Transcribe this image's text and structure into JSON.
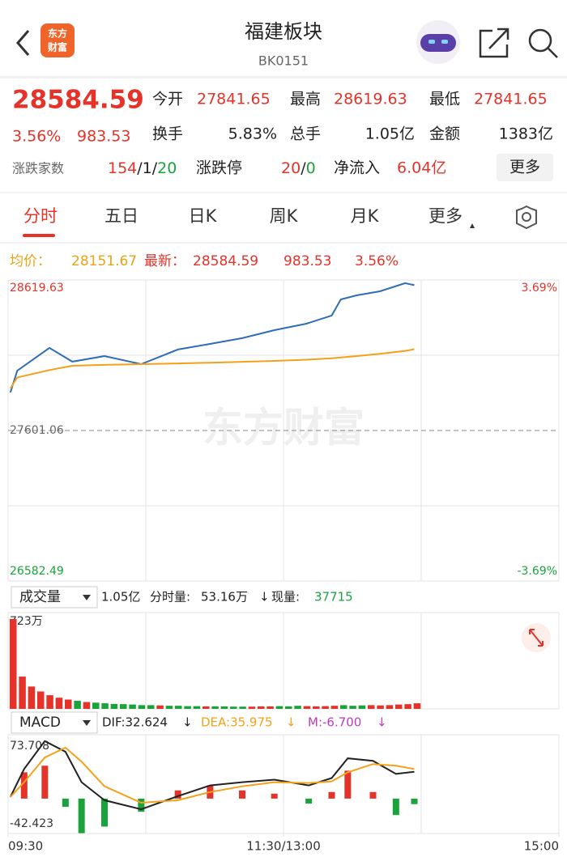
{
  "header": {
    "title": "福建板块",
    "code": "BK0151",
    "logo": [
      "东方",
      "财富"
    ]
  },
  "quote": {
    "price": "28584.59",
    "change_pct": "3.56%",
    "change": "983.53",
    "fields": [
      {
        "label": "今开",
        "value": "27841.65"
      },
      {
        "label": "最高",
        "value": "28619.63"
      },
      {
        "label": "最低",
        "value": "27841.65"
      },
      {
        "label": "换手",
        "value": "5.83%"
      },
      {
        "label": "总手",
        "value": "1.05亿"
      },
      {
        "label": "金额",
        "value": "1383亿"
      }
    ],
    "breadth": {
      "label": "涨跌家数",
      "up": "154",
      "s1": "/",
      "flat": "1",
      "s2": "/",
      "down": "20"
    },
    "limit": {
      "label": "涨跌停",
      "up": "20",
      "s": "/",
      "down": "0"
    },
    "netflow": {
      "label": "净流入",
      "value": "6.04亿"
    },
    "more": "更多"
  },
  "tabs": [
    "分时",
    "五日",
    "日K",
    "周K",
    "月K",
    "更多"
  ],
  "info": {
    "avg_label": "均价：",
    "avg": "28151.67",
    "last_label": "最新：",
    "last": "28584.59",
    "change": "983.53",
    "change_pct": "3.56%"
  },
  "time_axis": {
    "xlim": [
      0,
      240
    ],
    "xticks": [
      {
        "value": 0,
        "label": "09:30"
      },
      {
        "value": 120,
        "label": "11:30/13:00"
      },
      {
        "value": 240,
        "label": "15:00"
      }
    ]
  },
  "price_chart": {
    "type": "line",
    "watermark": "东方财富",
    "ylim": [
      26582.49,
      28619.63
    ],
    "yticks": [
      26582.49,
      27601.06,
      28619.63
    ],
    "y2lim": [
      -3.69,
      3.69
    ],
    "y2ticks": [
      {
        "value": 3.69,
        "label": "3.69%"
      },
      {
        "value": -3.69,
        "label": "-3.69%"
      }
    ],
    "x": [
      1,
      4,
      18,
      28,
      42,
      58,
      74,
      88,
      102,
      116,
      130,
      141,
      145,
      152,
      162,
      173,
      177
    ],
    "series": [
      {
        "color": "#2f6db5",
        "values": [
          27858,
          28006,
          28160,
          28067,
          28105,
          28050,
          28149,
          28187,
          28226,
          28280,
          28324,
          28379,
          28488,
          28516,
          28543,
          28598,
          28584.59
        ]
      },
      {
        "color": "#f5a01a",
        "values": [
          27886,
          27960,
          28010,
          28039,
          28045,
          28050,
          28055,
          28060,
          28066,
          28072,
          28080,
          28090,
          28095,
          28105,
          28120,
          28140,
          28151.67
        ]
      }
    ]
  },
  "volume_bar": {
    "selector": "成交量",
    "total": "1.05亿",
    "minute_label": "分时量:",
    "minute": "53.16万",
    "arrow": "↓",
    "current_label": "现量:",
    "current": "37715"
  },
  "volume_chart": {
    "type": "bar",
    "ylim": [
      0,
      723
    ],
    "yticks": [
      {
        "value": 723,
        "label": "723万"
      }
    ],
    "x": [
      0,
      4,
      8,
      12,
      16,
      20,
      24,
      28,
      32,
      36,
      40,
      44,
      48,
      52,
      56,
      60,
      64,
      68,
      72,
      76,
      80,
      84,
      88,
      92,
      96,
      100,
      104,
      108,
      112,
      116,
      120,
      124,
      128,
      132,
      136,
      140,
      144,
      148,
      152,
      156,
      160,
      164,
      168,
      172,
      176
    ],
    "values": [
      723,
      260,
      180,
      140,
      110,
      90,
      75,
      65,
      55,
      50,
      45,
      40,
      38,
      35,
      30,
      30,
      28,
      25,
      25,
      22,
      22,
      20,
      20,
      20,
      18,
      18,
      18,
      20,
      20,
      22,
      20,
      25,
      22,
      20,
      22,
      25,
      30,
      25,
      28,
      30,
      28,
      30,
      35,
      38,
      45
    ],
    "colors": [
      "#e5332a",
      "#e5332a",
      "#e5332a",
      "#e5332a",
      "#e5332a",
      "#e5332a",
      "#e5332a",
      "#1aa33b",
      "#e5332a",
      "#1aa33b",
      "#1aa33b",
      "#1aa33b",
      "#1aa33b",
      "#1aa33b",
      "#1aa33b",
      "#1aa33b",
      "#e5332a",
      "#1aa33b",
      "#1aa33b",
      "#1aa33b",
      "#1aa33b",
      "#e5332a",
      "#1aa33b",
      "#1aa33b",
      "#1aa33b",
      "#1aa33b",
      "#e5332a",
      "#e5332a",
      "#e5332a",
      "#1aa33b",
      "#1aa33b",
      "#1aa33b",
      "#e5332a",
      "#e5332a",
      "#e5332a",
      "#e5332a",
      "#1aa33b",
      "#1aa33b",
      "#1aa33b",
      "#e5332a",
      "#e5332a",
      "#e5332a",
      "#e5332a",
      "#e5332a",
      "#e5332a"
    ]
  },
  "macd_bar": {
    "selector": "MACD",
    "dif": "DIF:32.624",
    "dif_arrow": "↓",
    "dea": "DEA:35.975",
    "dea_arrow": "↓",
    "m": "M:-6.700",
    "m_arrow": "↓"
  },
  "macd_chart": {
    "type": "macd",
    "ylim": [
      -42.423,
      73.708
    ],
    "yticks": [
      73.708,
      -42.423
    ],
    "x": [
      1,
      7,
      16,
      25,
      32,
      42,
      58,
      74,
      88,
      102,
      116,
      131,
      141,
      148,
      159,
      169,
      177
    ],
    "dif": {
      "color": "#222222",
      "values": [
        2,
        36,
        70,
        57,
        20,
        -2,
        -13,
        3,
        16,
        20,
        23,
        16,
        25,
        49,
        46,
        30,
        32.624
      ]
    },
    "dea": {
      "color": "#f5a01a",
      "values": [
        2,
        20,
        50,
        62,
        45,
        15,
        -5,
        -2,
        8,
        15,
        20,
        19,
        21,
        32,
        42,
        40,
        35.975
      ]
    },
    "m": {
      "up_color": "#e5332a",
      "down_color": "#1aa33b",
      "values": [
        0,
        32,
        40,
        -10,
        -42,
        -34,
        -16,
        10,
        16,
        10,
        6,
        -6,
        8,
        34,
        8,
        -20,
        -6.7
      ]
    }
  }
}
